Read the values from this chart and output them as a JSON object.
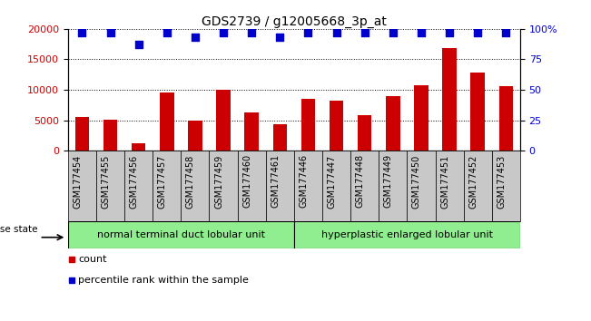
{
  "title": "GDS2739 / g12005668_3p_at",
  "categories": [
    "GSM177454",
    "GSM177455",
    "GSM177456",
    "GSM177457",
    "GSM177458",
    "GSM177459",
    "GSM177460",
    "GSM177461",
    "GSM177446",
    "GSM177447",
    "GSM177448",
    "GSM177449",
    "GSM177450",
    "GSM177451",
    "GSM177452",
    "GSM177453"
  ],
  "counts": [
    5600,
    5100,
    1300,
    9500,
    5000,
    10000,
    6300,
    4300,
    8600,
    8300,
    5900,
    9000,
    10700,
    16800,
    12900,
    10600
  ],
  "percentiles": [
    97,
    97,
    87,
    97,
    93,
    97,
    97,
    93,
    97,
    97,
    97,
    97,
    97,
    97,
    97,
    97
  ],
  "bar_color": "#cc0000",
  "dot_color": "#0000cc",
  "ylim_left": [
    0,
    20000
  ],
  "ylim_right": [
    0,
    100
  ],
  "yticks_left": [
    0,
    5000,
    10000,
    15000,
    20000
  ],
  "yticks_right": [
    0,
    25,
    50,
    75,
    100
  ],
  "ytick_labels_right": [
    "0",
    "25",
    "50",
    "75",
    "100%"
  ],
  "group1_label": "normal terminal duct lobular unit",
  "group2_label": "hyperplastic enlarged lobular unit",
  "group1_count": 8,
  "group2_count": 8,
  "group1_color": "#90ee90",
  "group2_color": "#90ee90",
  "disease_state_label": "disease state",
  "legend_count_label": "count",
  "legend_pct_label": "percentile rank within the sample",
  "bar_width": 0.5,
  "dot_size": 35,
  "dot_marker": "s",
  "xtick_bg_color": "#c8c8c8",
  "plot_bg_color": "#ffffff",
  "title_fontsize": 10,
  "axis_fontsize": 8,
  "tick_fontsize": 7,
  "legend_fontsize": 8,
  "group_fontsize": 8
}
